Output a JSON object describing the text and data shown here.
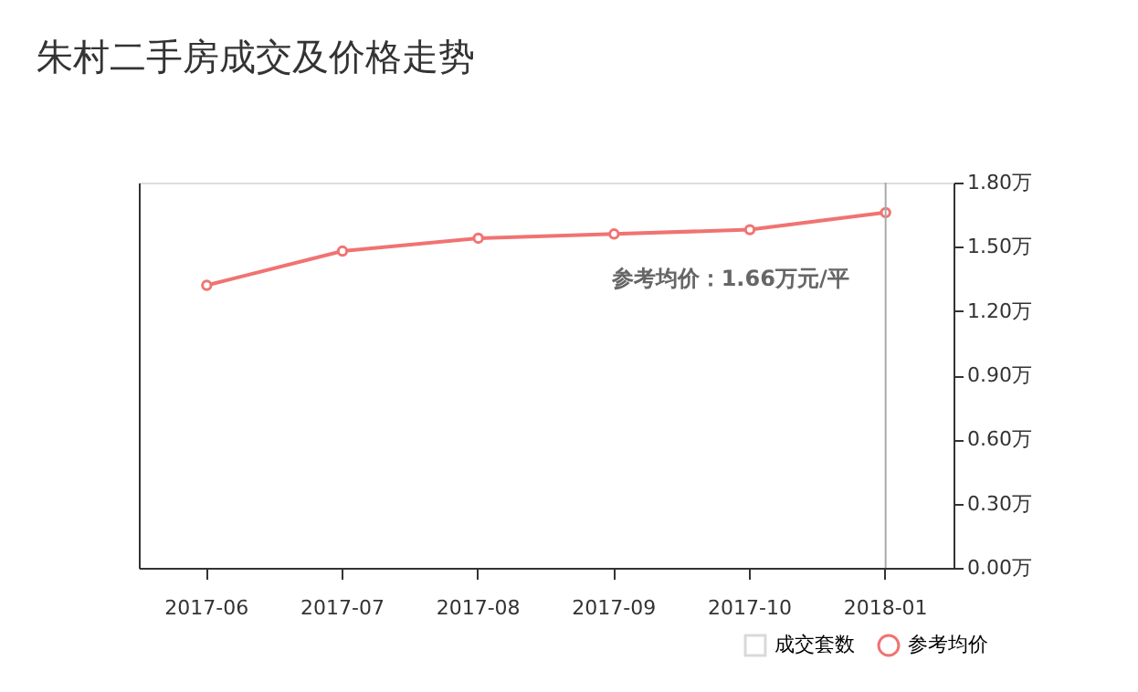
{
  "chart_data": {
    "type": "line",
    "title": "朱村二手房成交及价格走势",
    "categories": [
      "2017-06",
      "2017-07",
      "2017-08",
      "2017-09",
      "2017-10",
      "2018-01"
    ],
    "series": [
      {
        "name": "成交套数",
        "type": "bar",
        "color": "#d9d9d9",
        "values": [
          null,
          null,
          null,
          null,
          null,
          null
        ]
      },
      {
        "name": "参考均价",
        "axis": "y2",
        "color": "#f07372",
        "values": [
          1.32,
          1.48,
          1.54,
          1.56,
          1.58,
          1.66
        ]
      }
    ],
    "y2lim": [
      0,
      1.8
    ],
    "y2ticks": [
      {
        "value": 0,
        "label": "0.00万"
      },
      {
        "value": 0.3,
        "label": "0.30万"
      },
      {
        "value": 0.6,
        "label": "0.60万"
      },
      {
        "value": 0.9,
        "label": "0.90万"
      },
      {
        "value": 1.2,
        "label": "1.20万"
      },
      {
        "value": 1.5,
        "label": "1.50万"
      },
      {
        "value": 1.8,
        "label": "1.80万"
      }
    ],
    "ref_lines": [
      {
        "axis": "x",
        "value": "2018-01",
        "color": "#aaaaaa"
      }
    ],
    "annotations": [
      "参考均价：1.66万元/平"
    ],
    "legend": "bottom right",
    "marker": "circle",
    "grid": false
  }
}
